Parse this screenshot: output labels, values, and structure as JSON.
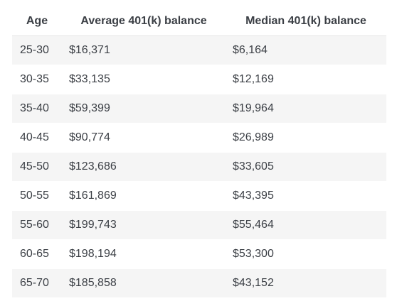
{
  "table": {
    "headers": [
      "Age",
      "Average 401(k) balance",
      "Median 401(k) balance"
    ],
    "rows": [
      [
        "25-30",
        "$16,371",
        "$6,164"
      ],
      [
        "30-35",
        "$33,135",
        "$12,169"
      ],
      [
        "35-40",
        "$59,399",
        "$19,964"
      ],
      [
        "40-45",
        "$90,774",
        "$26,989"
      ],
      [
        "45-50",
        "$123,686",
        "$33,605"
      ],
      [
        "50-55",
        "$161,869",
        "$43,395"
      ],
      [
        "55-60",
        "$199,743",
        "$55,464"
      ],
      [
        "60-65",
        "$198,194",
        "$53,300"
      ],
      [
        "65-70",
        "$185,858",
        "$43,152"
      ]
    ]
  },
  "colors": {
    "text": "#3b3f45",
    "stripe": "#f5f5f5",
    "background": "#ffffff"
  }
}
